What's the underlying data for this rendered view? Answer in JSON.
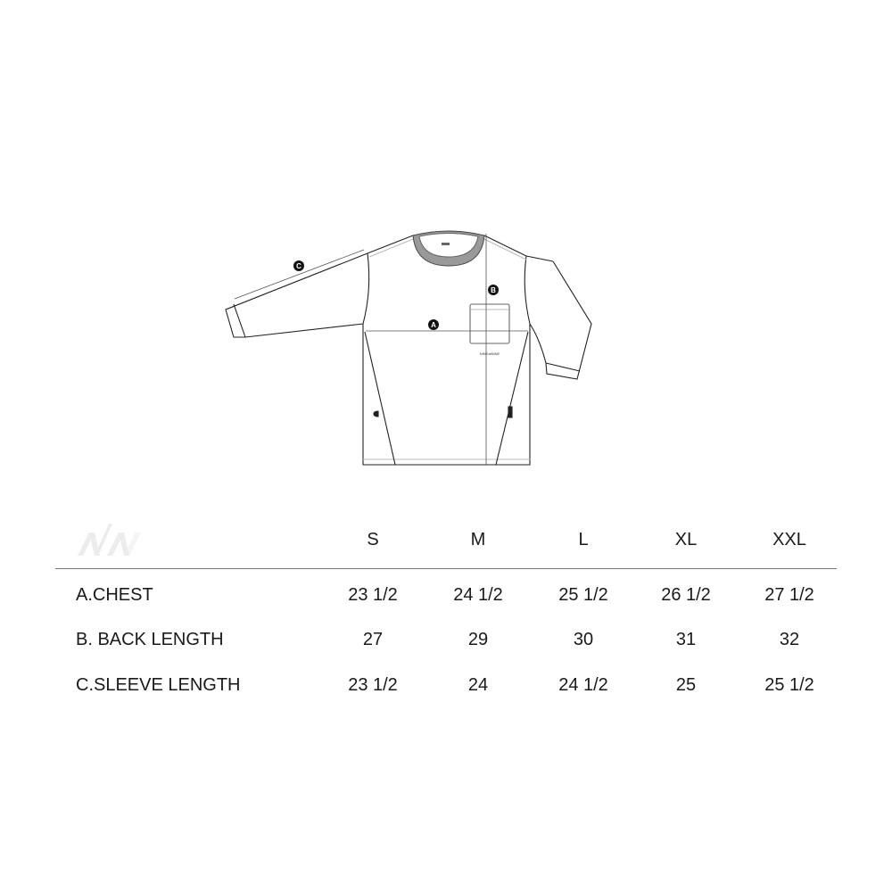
{
  "diagram": {
    "labels": {
      "chest": "A",
      "back_length": "B",
      "sleeve_length": "C"
    },
    "pocket_tag": "NINEatNINE"
  },
  "logo": {
    "text": "N/N"
  },
  "size_table": {
    "sizes": [
      "S",
      "M",
      "L",
      "XL",
      "XXL"
    ],
    "rows": [
      {
        "label": "A.CHEST",
        "values": [
          "23 1/2",
          "24 1/2",
          "25 1/2",
          "26 1/2",
          "27 1/2"
        ]
      },
      {
        "label": "B. BACK LENGTH",
        "values": [
          "27",
          "29",
          "30",
          "31",
          "32"
        ]
      },
      {
        "label": "C.SLEEVE LENGTH",
        "values": [
          "23 1/2",
          "24",
          "24 1/2",
          "25",
          "25 1/2"
        ]
      }
    ]
  }
}
